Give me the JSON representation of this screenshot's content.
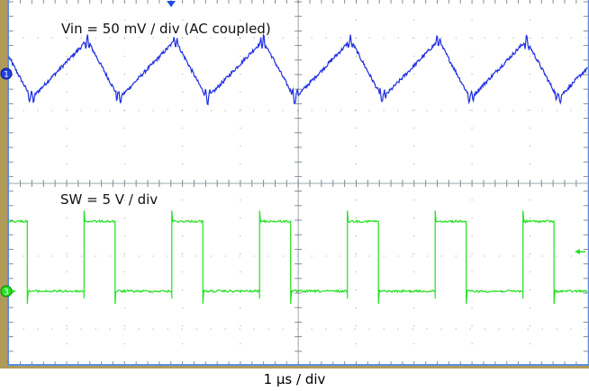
{
  "chart_data": {
    "type": "line",
    "xlabel": "1 µs / div",
    "x_unit": "µs",
    "xlim": [
      0,
      10
    ],
    "grid": true,
    "series": [
      {
        "name": "Vin = 50 mV / div (AC coupled)",
        "channel": "1",
        "color": "#1f2fe0",
        "unit": "mV",
        "shape": "triangle",
        "period_us": 1.516,
        "first_trough_us": 0.39,
        "first_peak_us": 1.36,
        "peak_mV": 23,
        "trough_mV": -17
      },
      {
        "name": "SW = 5 V / div",
        "channel": "3",
        "color": "#22e022",
        "unit": "V",
        "shape": "square",
        "period_us": 1.516,
        "first_falling_edge_us": 0.32,
        "first_rising_edge_us": 1.3,
        "high_V": 4.8,
        "low_V": 0
      }
    ]
  },
  "markers": {
    "ch1": "1",
    "ch3": "3"
  },
  "colors": {
    "bezel": "#b09a5a",
    "border": "#5b8ee0",
    "grid": "#a0a0a0"
  }
}
